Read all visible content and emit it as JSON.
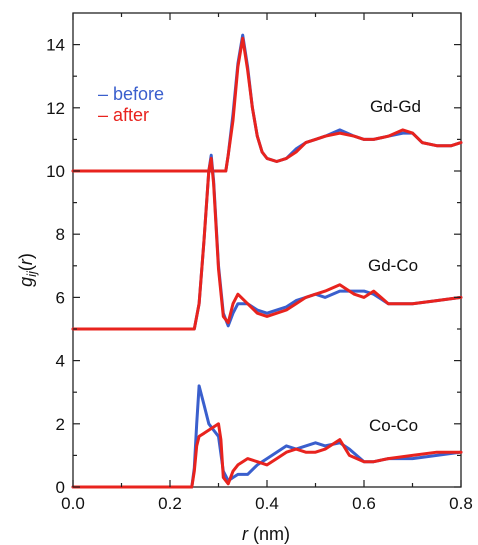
{
  "chart_data": {
    "type": "line",
    "xlabel": "r (nm)",
    "ylabel": "g_ij(r)",
    "xlim": [
      0,
      0.8
    ],
    "ylim": [
      0,
      15
    ],
    "xticks": [
      "0.0",
      "0.2",
      "0.4",
      "0.6",
      "0.8"
    ],
    "yticks": [
      "0",
      "2",
      "4",
      "6",
      "8",
      "10",
      "12",
      "14"
    ],
    "legend": {
      "placement": "top-left",
      "entries": [
        {
          "name": "– before",
          "color": "#3a5fcd"
        },
        {
          "name": "– after",
          "color": "#e8231e"
        }
      ]
    },
    "curve_labels": [
      "Gd-Gd",
      "Gd-Co",
      "Co-Co"
    ],
    "series": [
      {
        "name": "before",
        "group": "Gd-Gd",
        "color": "#3a5fcd",
        "x": [
          0,
          0.315,
          0.32,
          0.33,
          0.34,
          0.35,
          0.36,
          0.37,
          0.38,
          0.39,
          0.4,
          0.42,
          0.44,
          0.46,
          0.48,
          0.5,
          0.52,
          0.55,
          0.58,
          0.6,
          0.62,
          0.65,
          0.68,
          0.7,
          0.72,
          0.75,
          0.78,
          0.8
        ],
        "y": [
          10,
          10,
          10.5,
          11.8,
          13.4,
          14.3,
          13.3,
          12.0,
          11.1,
          10.6,
          10.4,
          10.3,
          10.4,
          10.7,
          10.9,
          11.0,
          11.1,
          11.3,
          11.1,
          11.0,
          11.0,
          11.1,
          11.2,
          11.2,
          10.9,
          10.8,
          10.8,
          10.9
        ]
      },
      {
        "name": "after",
        "group": "Gd-Gd",
        "color": "#e8231e",
        "x": [
          0,
          0.315,
          0.32,
          0.33,
          0.34,
          0.35,
          0.36,
          0.37,
          0.38,
          0.39,
          0.4,
          0.42,
          0.44,
          0.46,
          0.48,
          0.5,
          0.52,
          0.55,
          0.58,
          0.6,
          0.62,
          0.65,
          0.68,
          0.7,
          0.72,
          0.75,
          0.78,
          0.8
        ],
        "y": [
          10,
          10,
          10.5,
          11.6,
          13.3,
          14.2,
          13.2,
          12.0,
          11.1,
          10.6,
          10.4,
          10.3,
          10.4,
          10.6,
          10.9,
          11.0,
          11.1,
          11.2,
          11.1,
          11.0,
          11.0,
          11.1,
          11.3,
          11.2,
          10.9,
          10.8,
          10.8,
          10.9
        ]
      },
      {
        "name": "before",
        "group": "Gd-Co",
        "color": "#3a5fcd",
        "x": [
          0,
          0.25,
          0.26,
          0.27,
          0.28,
          0.285,
          0.29,
          0.3,
          0.31,
          0.32,
          0.33,
          0.34,
          0.36,
          0.38,
          0.4,
          0.42,
          0.44,
          0.46,
          0.48,
          0.5,
          0.52,
          0.55,
          0.58,
          0.6,
          0.62,
          0.65,
          0.7,
          0.75,
          0.8
        ],
        "y": [
          5,
          5,
          5.8,
          7.8,
          10.0,
          10.5,
          9.7,
          7.0,
          5.5,
          5.1,
          5.5,
          5.8,
          5.8,
          5.6,
          5.5,
          5.6,
          5.7,
          5.9,
          6.0,
          6.1,
          6.0,
          6.2,
          6.2,
          6.2,
          6.1,
          5.8,
          5.8,
          5.9,
          6.0
        ]
      },
      {
        "name": "after",
        "group": "Gd-Co",
        "color": "#e8231e",
        "x": [
          0,
          0.25,
          0.26,
          0.27,
          0.28,
          0.285,
          0.29,
          0.3,
          0.31,
          0.32,
          0.33,
          0.34,
          0.36,
          0.38,
          0.4,
          0.42,
          0.44,
          0.46,
          0.48,
          0.5,
          0.52,
          0.55,
          0.58,
          0.6,
          0.62,
          0.65,
          0.7,
          0.75,
          0.8
        ],
        "y": [
          5,
          5,
          5.8,
          7.8,
          10.0,
          10.4,
          9.6,
          6.9,
          5.4,
          5.2,
          5.8,
          6.1,
          5.8,
          5.5,
          5.4,
          5.5,
          5.6,
          5.8,
          6.0,
          6.1,
          6.2,
          6.4,
          6.1,
          6.0,
          6.2,
          5.8,
          5.8,
          5.9,
          6.0
        ]
      },
      {
        "name": "before",
        "group": "Co-Co",
        "color": "#3a5fcd",
        "x": [
          0,
          0.245,
          0.25,
          0.255,
          0.26,
          0.27,
          0.28,
          0.29,
          0.3,
          0.31,
          0.32,
          0.33,
          0.34,
          0.36,
          0.38,
          0.4,
          0.42,
          0.44,
          0.46,
          0.48,
          0.5,
          0.52,
          0.55,
          0.57,
          0.6,
          0.62,
          0.65,
          0.7,
          0.75,
          0.8
        ],
        "y": [
          0,
          0,
          0.6,
          2.0,
          3.2,
          2.6,
          2.0,
          1.8,
          1.6,
          0.5,
          0.2,
          0.3,
          0.4,
          0.4,
          0.7,
          0.9,
          1.1,
          1.3,
          1.2,
          1.3,
          1.4,
          1.3,
          1.4,
          1.2,
          0.8,
          0.8,
          0.9,
          0.9,
          1.0,
          1.1
        ]
      },
      {
        "name": "after",
        "group": "Co-Co",
        "color": "#e8231e",
        "x": [
          0,
          0.245,
          0.25,
          0.255,
          0.26,
          0.27,
          0.28,
          0.29,
          0.3,
          0.305,
          0.31,
          0.32,
          0.33,
          0.34,
          0.36,
          0.38,
          0.4,
          0.42,
          0.44,
          0.46,
          0.48,
          0.5,
          0.52,
          0.55,
          0.57,
          0.6,
          0.62,
          0.65,
          0.7,
          0.75,
          0.8
        ],
        "y": [
          0,
          0,
          0.5,
          1.3,
          1.6,
          1.7,
          1.8,
          1.9,
          2.0,
          1.5,
          0.3,
          0.1,
          0.5,
          0.7,
          0.9,
          0.8,
          0.7,
          0.9,
          1.1,
          1.2,
          1.1,
          1.1,
          1.2,
          1.5,
          1.0,
          0.8,
          0.8,
          0.9,
          1.0,
          1.1,
          1.1
        ]
      }
    ]
  }
}
